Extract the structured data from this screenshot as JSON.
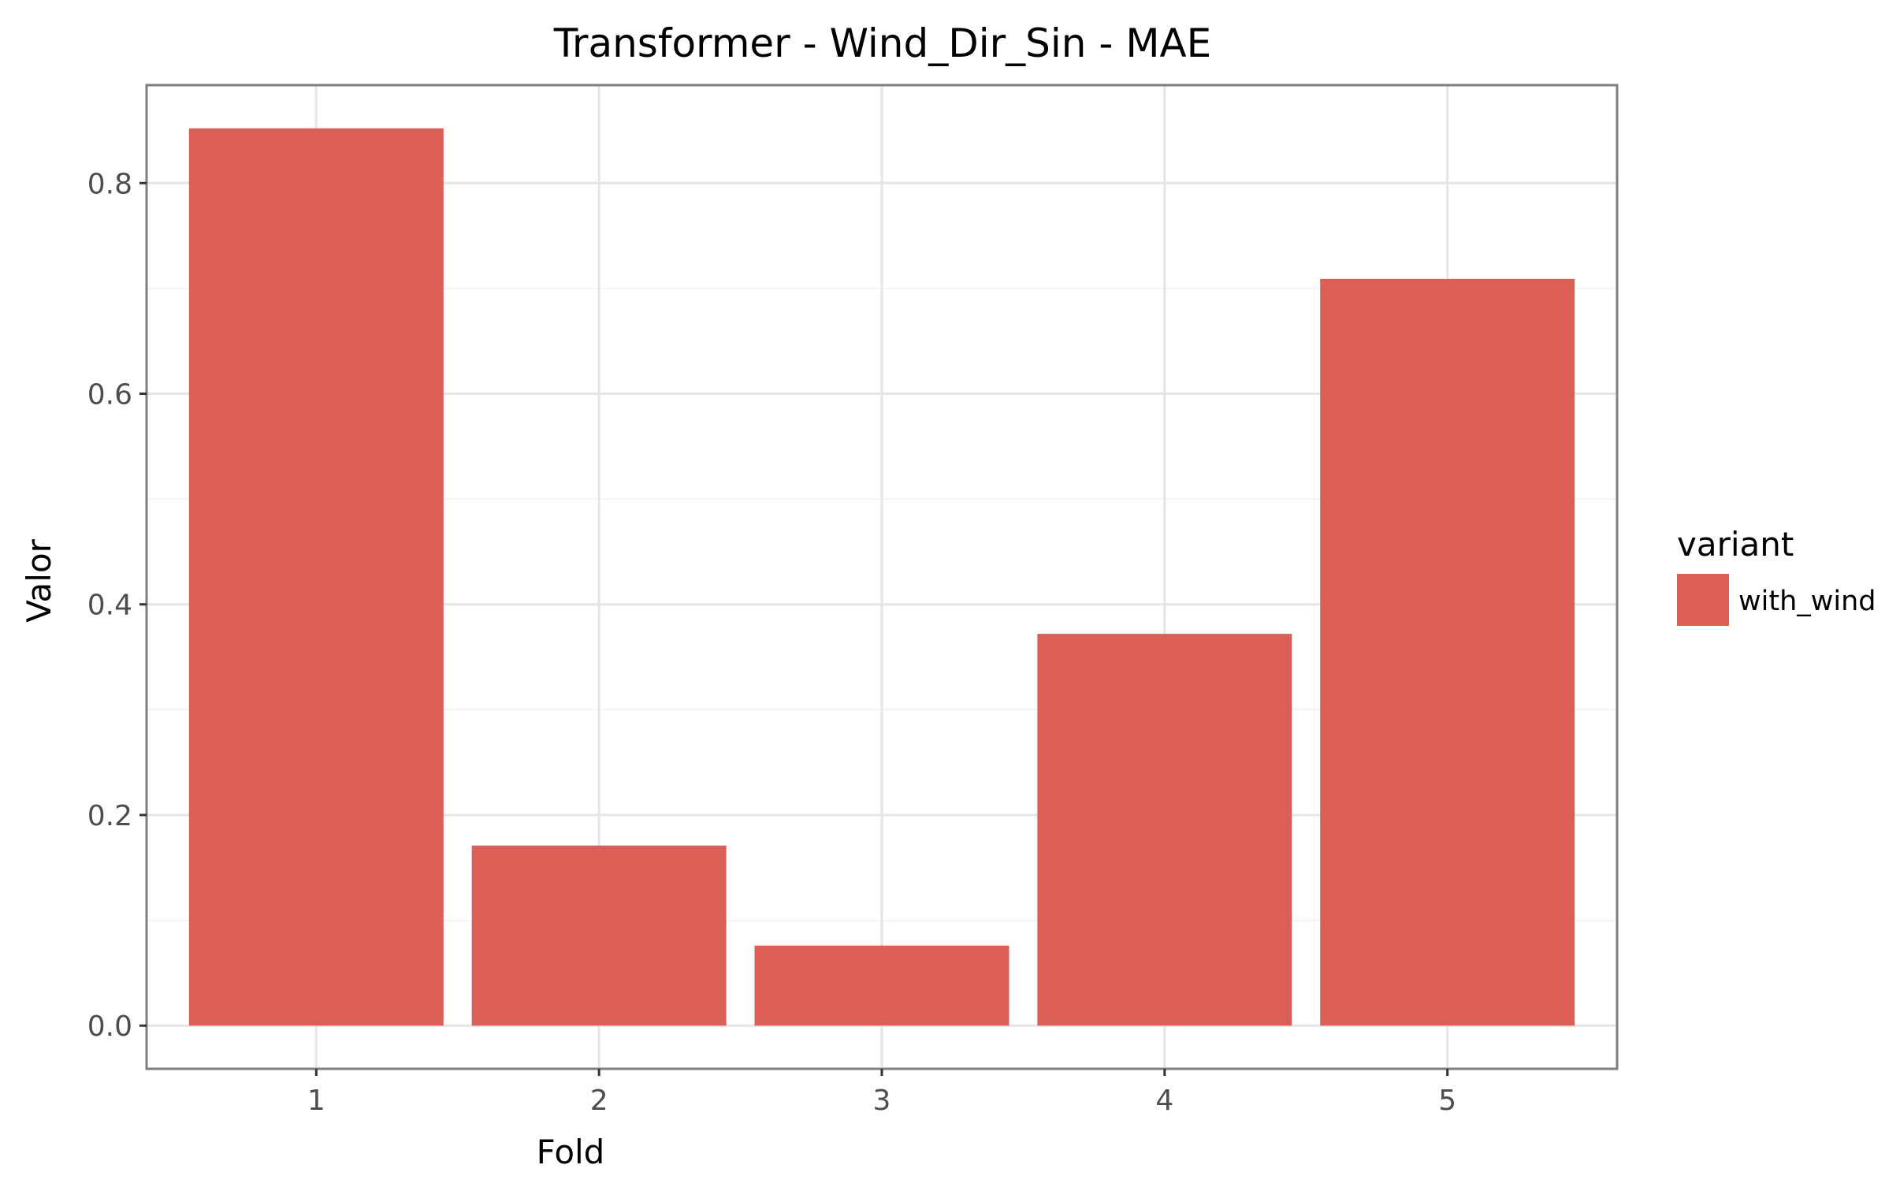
{
  "chart_data": {
    "type": "bar",
    "title": "Transformer - Wind_Dir_Sin - MAE",
    "xlabel": "Fold",
    "ylabel": "Valor",
    "categories": [
      "1",
      "2",
      "3",
      "4",
      "5"
    ],
    "series": [
      {
        "name": "with_wind",
        "values": [
          0.852,
          0.171,
          0.076,
          0.372,
          0.709
        ],
        "color": "#dc5f57"
      }
    ],
    "ylim": [
      -0.041,
      0.893
    ],
    "yticks": [
      0.0,
      0.2,
      0.4,
      0.6,
      0.8
    ],
    "ytick_labels": [
      "0.0",
      "0.2",
      "0.4",
      "0.6",
      "0.8"
    ],
    "grid": true,
    "legend": {
      "title": "variant",
      "placement": "right"
    }
  }
}
